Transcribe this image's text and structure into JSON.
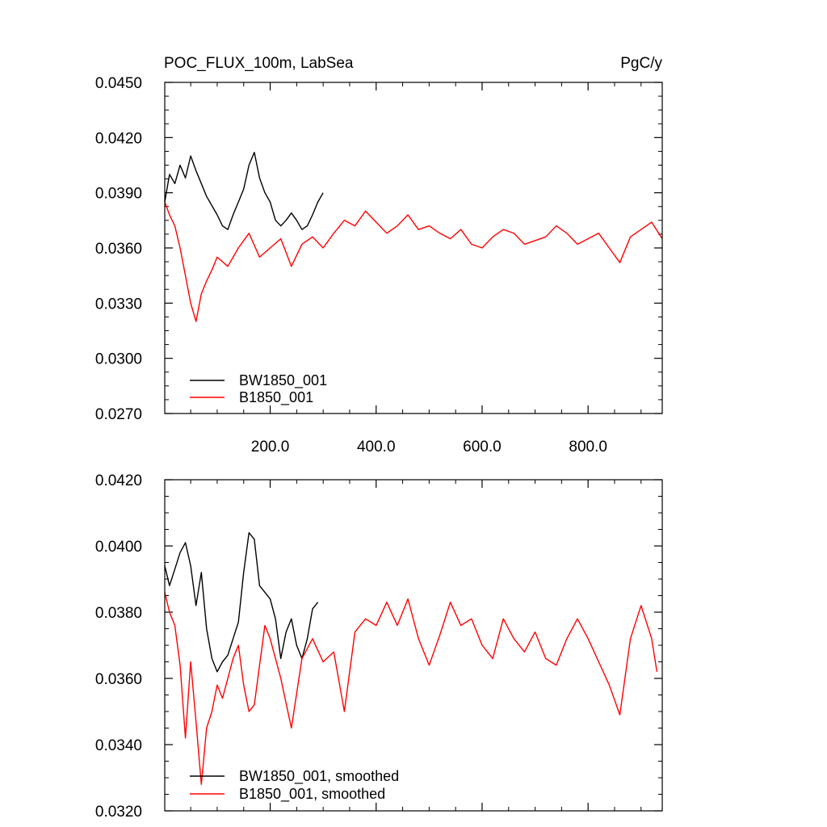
{
  "chart_data": [
    {
      "type": "line",
      "title": "POC_FLUX_100m, LabSea",
      "units": "PgC/y",
      "xlim": [
        1,
        940
      ],
      "ylim": [
        0.027,
        0.045
      ],
      "x_ticks": [
        200,
        400,
        600,
        800
      ],
      "x_tick_labels": [
        "200.0",
        "400.0",
        "600.0",
        "800.0"
      ],
      "y_ticks": [
        0.027,
        0.03,
        0.033,
        0.036,
        0.039,
        0.042,
        0.045
      ],
      "y_tick_labels": [
        "0.0270",
        "0.0300",
        "0.0330",
        "0.0360",
        "0.0390",
        "0.0420",
        "0.0450"
      ],
      "legend_position": "bottom-left",
      "grid": false,
      "series": [
        {
          "name": "BW1850_001",
          "color": "#000000",
          "x": [
            1,
            10,
            20,
            30,
            40,
            50,
            60,
            70,
            80,
            90,
            100,
            110,
            120,
            130,
            140,
            150,
            160,
            170,
            180,
            190,
            200,
            210,
            220,
            230,
            240,
            250,
            260,
            270,
            280,
            290,
            300
          ],
          "values": [
            0.0385,
            0.04,
            0.0395,
            0.0405,
            0.0398,
            0.041,
            0.0402,
            0.0395,
            0.0388,
            0.0383,
            0.0378,
            0.0372,
            0.037,
            0.0378,
            0.0385,
            0.0392,
            0.0405,
            0.0412,
            0.0398,
            0.039,
            0.0385,
            0.0375,
            0.0372,
            0.0375,
            0.0379,
            0.0375,
            0.037,
            0.0372,
            0.0378,
            0.0385,
            0.039
          ]
        },
        {
          "name": "B1850_001",
          "color": "#ff0000",
          "x": [
            1,
            10,
            20,
            30,
            40,
            50,
            60,
            70,
            80,
            90,
            100,
            120,
            140,
            160,
            180,
            200,
            220,
            240,
            260,
            280,
            300,
            320,
            340,
            360,
            380,
            400,
            420,
            440,
            460,
            480,
            500,
            520,
            540,
            560,
            580,
            600,
            620,
            640,
            660,
            680,
            700,
            720,
            740,
            760,
            780,
            800,
            820,
            840,
            860,
            880,
            900,
            920,
            940
          ],
          "values": [
            0.0385,
            0.0378,
            0.0372,
            0.036,
            0.0345,
            0.033,
            0.032,
            0.0335,
            0.0342,
            0.0348,
            0.0355,
            0.035,
            0.036,
            0.0368,
            0.0355,
            0.036,
            0.0365,
            0.035,
            0.0362,
            0.0366,
            0.036,
            0.0368,
            0.0375,
            0.0372,
            0.038,
            0.0374,
            0.0368,
            0.0372,
            0.0378,
            0.037,
            0.0372,
            0.0368,
            0.0365,
            0.037,
            0.0362,
            0.036,
            0.0366,
            0.037,
            0.0368,
            0.0362,
            0.0364,
            0.0366,
            0.0372,
            0.0368,
            0.0362,
            0.0365,
            0.0368,
            0.036,
            0.0352,
            0.0366,
            0.037,
            0.0374,
            0.0365
          ]
        }
      ]
    },
    {
      "type": "line",
      "title": "",
      "xlim": [
        1,
        940
      ],
      "ylim": [
        0.032,
        0.042
      ],
      "x_ticks": [
        200,
        400,
        600,
        800
      ],
      "y_ticks": [
        0.032,
        0.034,
        0.036,
        0.038,
        0.04,
        0.042
      ],
      "y_tick_labels": [
        "0.0320",
        "0.0340",
        "0.0360",
        "0.0380",
        "0.0400",
        "0.0420"
      ],
      "legend_position": "bottom-left",
      "grid": false,
      "series": [
        {
          "name": "BW1850_001, smoothed",
          "color": "#000000",
          "x": [
            1,
            10,
            20,
            30,
            40,
            50,
            60,
            70,
            80,
            90,
            100,
            110,
            120,
            130,
            140,
            150,
            160,
            170,
            180,
            190,
            200,
            210,
            220,
            230,
            240,
            250,
            260,
            270,
            280,
            290
          ],
          "values": [
            0.0394,
            0.0388,
            0.0393,
            0.0398,
            0.0401,
            0.0394,
            0.0382,
            0.0392,
            0.0375,
            0.0366,
            0.0362,
            0.0365,
            0.0367,
            0.0372,
            0.0377,
            0.0392,
            0.0404,
            0.0402,
            0.0388,
            0.0386,
            0.0384,
            0.0378,
            0.0366,
            0.0374,
            0.0378,
            0.037,
            0.0366,
            0.0372,
            0.0381,
            0.0383
          ]
        },
        {
          "name": "B1850_001, smoothed",
          "color": "#ff0000",
          "x": [
            1,
            10,
            20,
            30,
            40,
            50,
            60,
            70,
            80,
            90,
            100,
            110,
            120,
            130,
            140,
            150,
            160,
            170,
            180,
            190,
            200,
            220,
            240,
            260,
            280,
            300,
            320,
            340,
            360,
            380,
            400,
            420,
            440,
            460,
            480,
            500,
            520,
            540,
            560,
            580,
            600,
            620,
            640,
            660,
            680,
            700,
            720,
            740,
            760,
            780,
            800,
            820,
            840,
            860,
            880,
            900,
            920,
            930
          ],
          "values": [
            0.0386,
            0.038,
            0.0376,
            0.0364,
            0.0342,
            0.0365,
            0.0347,
            0.0328,
            0.0345,
            0.035,
            0.0358,
            0.0354,
            0.036,
            0.0366,
            0.037,
            0.0358,
            0.035,
            0.0352,
            0.0364,
            0.0376,
            0.0372,
            0.036,
            0.0345,
            0.0366,
            0.0372,
            0.0365,
            0.0368,
            0.035,
            0.0374,
            0.0378,
            0.0376,
            0.0383,
            0.0376,
            0.0384,
            0.0372,
            0.0364,
            0.0373,
            0.0383,
            0.0376,
            0.0378,
            0.037,
            0.0366,
            0.0378,
            0.0372,
            0.0368,
            0.0374,
            0.0366,
            0.0364,
            0.0372,
            0.0378,
            0.0372,
            0.0365,
            0.0358,
            0.0349,
            0.0372,
            0.0382,
            0.0372,
            0.0362
          ]
        }
      ]
    }
  ]
}
